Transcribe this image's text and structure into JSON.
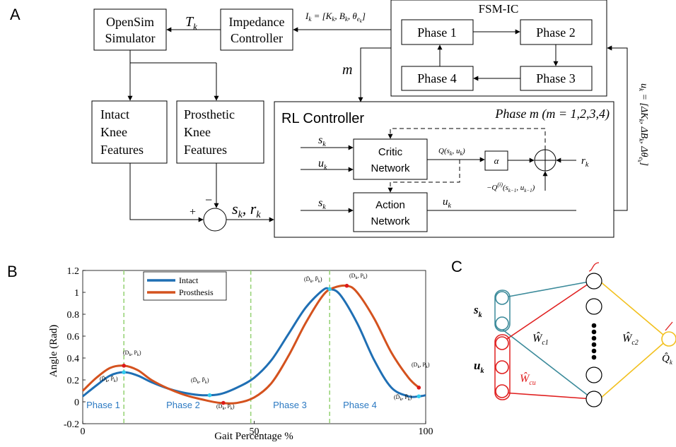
{
  "panel_a": {
    "label": "A",
    "opensim": [
      "OpenSim",
      "Simulator"
    ],
    "impedance": [
      "Impedance",
      "Controller"
    ],
    "tk": "T",
    "tk_sub": "k",
    "ik_eq": "I",
    "ik_sub": "k",
    "ik_rest": " = [K",
    "ik_rest2": ", B",
    "ik_rest3": ", θ",
    "ik_end": "]",
    "fsm_title": "FSM-IC",
    "phases": [
      "Phase 1",
      "Phase 2",
      "Phase 3",
      "Phase 4"
    ],
    "m_label": "m",
    "intact_features": [
      "Intact",
      "Knee",
      "Features"
    ],
    "prosthetic_features": [
      "Prosthetic",
      "Knee",
      "Features"
    ],
    "plus": "+",
    "minus": "−",
    "sk_rk": "s",
    "sk_rk_sub": "k",
    "sk_rk_mid": ", r",
    "rl_title": "RL Controller",
    "phase_m": "Phase m (m = 1,2,3,4)",
    "critic": [
      "Critic",
      "Network"
    ],
    "action": [
      "Action",
      "Network"
    ],
    "alpha": "α",
    "q_label": "Q(s",
    "q_label_end": ", u",
    "q_prev": "−Q",
    "q_prev_sup": "(i)",
    "q_prev_args": "(s",
    "rk": "r",
    "uk_out": "u",
    "side_label": "u"
  },
  "panel_b": {
    "label": "B",
    "legend": [
      "Intact",
      "Prosthesis"
    ],
    "phase_labels": [
      "Phase 1",
      "Phase 2",
      "Phase 3",
      "Phase 4"
    ],
    "xlabel": "Gait Percentage %",
    "ylabel": "Angle (Rad)"
  },
  "panel_c": {
    "label": "C",
    "sk": "s",
    "uk": "u",
    "wc1": "Ŵ",
    "wc2": "Ŵ",
    "wcu": "Ŵ",
    "qk": "Q̂"
  },
  "colors": {
    "intact": "#1f6fb4",
    "prosthesis": "#d4521e",
    "phase_line": "#9ad47a",
    "teal": "#3b8a9a",
    "red": "#e02020",
    "yellow": "#f2c01e",
    "phase_text": "#2b79c2"
  },
  "chart_data": {
    "type": "line",
    "xlabel": "Gait Percentage %",
    "ylabel": "Angle (Rad)",
    "xlim": [
      0,
      100
    ],
    "ylim": [
      -0.2,
      1.2
    ],
    "xticks": [
      0,
      50,
      100
    ],
    "yticks": [
      -0.2,
      0,
      0.2,
      0.4,
      0.6,
      0.8,
      1,
      1.2
    ],
    "phase_boundaries": [
      12,
      49,
      72
    ],
    "legend": "top-left",
    "series": [
      {
        "name": "Intact",
        "x": [
          0,
          4,
          8,
          12,
          16,
          20,
          25,
          30,
          35,
          40,
          45,
          50,
          55,
          60,
          65,
          70,
          72,
          75,
          80,
          85,
          90,
          95,
          98,
          100
        ],
        "y": [
          0.05,
          0.15,
          0.24,
          0.27,
          0.24,
          0.18,
          0.12,
          0.08,
          0.06,
          0.07,
          0.13,
          0.22,
          0.38,
          0.62,
          0.86,
          1.02,
          1.03,
          0.98,
          0.72,
          0.38,
          0.13,
          0.05,
          0.05,
          0.06
        ]
      },
      {
        "name": "Prosthesis",
        "x": [
          0,
          4,
          8,
          12,
          16,
          20,
          25,
          30,
          35,
          40,
          45,
          50,
          55,
          60,
          65,
          70,
          73,
          77,
          80,
          85,
          90,
          95,
          98
        ],
        "y": [
          0.1,
          0.22,
          0.31,
          0.33,
          0.29,
          0.2,
          0.12,
          0.06,
          0.02,
          -0.01,
          -0.01,
          0.04,
          0.17,
          0.42,
          0.72,
          0.97,
          1.04,
          1.06,
          1.0,
          0.76,
          0.45,
          0.22,
          0.13
        ]
      }
    ]
  }
}
